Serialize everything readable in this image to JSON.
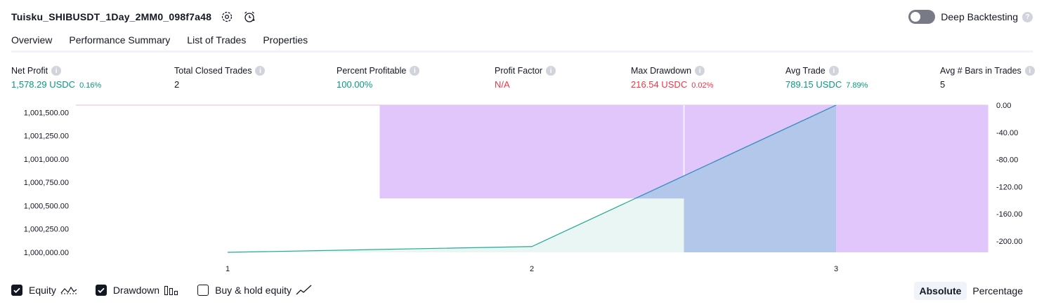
{
  "header": {
    "strategy_name": "Tuisku_SHIBUSDT_1Day_2MM0_098f7a48"
  },
  "deep_backtesting": {
    "label": "Deep Backtesting",
    "enabled": false
  },
  "tabs": [
    {
      "label": "Overview",
      "active": true
    },
    {
      "label": "Performance Summary",
      "active": false
    },
    {
      "label": "List of Trades",
      "active": false
    },
    {
      "label": "Properties",
      "active": false
    }
  ],
  "metrics": {
    "net_profit": {
      "label": "Net Profit",
      "value": "1,578.29 USDC",
      "sub": "0.16%"
    },
    "total_closed_trades": {
      "label": "Total Closed Trades",
      "value": "2"
    },
    "percent_profitable": {
      "label": "Percent Profitable",
      "value": "100.00%"
    },
    "profit_factor": {
      "label": "Profit Factor",
      "value": "N/A"
    },
    "max_drawdown": {
      "label": "Max Drawdown",
      "value": "216.54 USDC",
      "sub": "0.02%"
    },
    "avg_trade": {
      "label": "Avg Trade",
      "value": "789.15 USDC",
      "sub": "7.89%"
    },
    "avg_bars": {
      "label": "Avg # Bars in Trades",
      "value": "5"
    }
  },
  "chart_data": {
    "type": "line",
    "x_ticks": [
      "1",
      "2",
      "3"
    ],
    "left_axis": {
      "ticks": [
        "1,001,500.00",
        "1,001,250.00",
        "1,001,000.00",
        "1,000,750.00",
        "1,000,500.00",
        "1,000,250.00",
        "1,000,000.00"
      ],
      "range": [
        1000000,
        1001578.29
      ]
    },
    "right_axis": {
      "ticks": [
        "0.00",
        "-40.00",
        "-80.00",
        "-120.00",
        "-160.00",
        "-200.00"
      ],
      "range": [
        -216.54,
        0
      ]
    },
    "equity": [
      {
        "x": 1,
        "y": 1000000.0
      },
      {
        "x": 2,
        "y": 1000061.8
      },
      {
        "x": 3,
        "y": 1001578.29
      }
    ],
    "drawdown_bars": [
      {
        "x_from": 1.5,
        "x_to": 2.5,
        "value": -137.28
      },
      {
        "x_from": 2.5,
        "x_to": 3.5,
        "value": -216.54
      }
    ],
    "colors": {
      "equity_line": "#22ab94",
      "equity_fill": "#e6f5f1",
      "equity_line_high": "#3d8cc4",
      "equity_fill_high": "#a9c0e8",
      "drawdown": "#e1c6fb",
      "drawdown_top_line": "#eab8e0"
    }
  },
  "legend": {
    "equity": {
      "label": "Equity",
      "checked": true
    },
    "drawdown": {
      "label": "Drawdown",
      "checked": true
    },
    "buy_hold": {
      "label": "Buy & hold equity",
      "checked": false
    }
  },
  "mode": {
    "absolute_label": "Absolute",
    "percentage_label": "Percentage",
    "active": "Absolute"
  }
}
